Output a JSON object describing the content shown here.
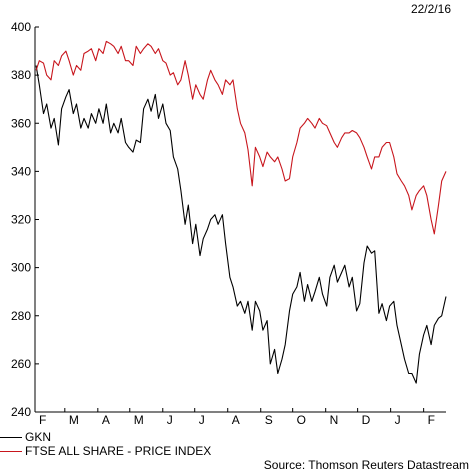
{
  "date_stamp": "22/2/16",
  "source": "Source: Thomson Reuters Datastream",
  "colors": {
    "gkn": "#000000",
    "ftse": "#c8161d"
  },
  "chart_data": {
    "type": "line",
    "title": "",
    "xlabel": "",
    "ylabel": "",
    "ylim": [
      240,
      400
    ],
    "yticks": [
      240,
      260,
      280,
      300,
      320,
      340,
      360,
      380,
      400
    ],
    "xlim": [
      "2015-02-01",
      "2016-02-22"
    ],
    "xticks": [
      {
        "label": "F",
        "date": "2015-02-01"
      },
      {
        "label": "M",
        "date": "2015-03-01"
      },
      {
        "label": "A",
        "date": "2015-04-01"
      },
      {
        "label": "M",
        "date": "2015-05-01"
      },
      {
        "label": "J",
        "date": "2015-06-01"
      },
      {
        "label": "J",
        "date": "2015-07-01"
      },
      {
        "label": "A",
        "date": "2015-08-01"
      },
      {
        "label": "S",
        "date": "2015-09-01"
      },
      {
        "label": "O",
        "date": "2015-10-01"
      },
      {
        "label": "N",
        "date": "2015-11-01"
      },
      {
        "label": "D",
        "date": "2015-12-01"
      },
      {
        "label": "J",
        "date": "2016-01-01"
      },
      {
        "label": "F",
        "date": "2016-02-01"
      }
    ],
    "legend_position": "bottom-left",
    "grid": false,
    "series": [
      {
        "name": "GKN",
        "color": "#000000",
        "points": [
          [
            "2015-02-02",
            384
          ],
          [
            "2015-02-05",
            376
          ],
          [
            "2015-02-09",
            364
          ],
          [
            "2015-02-12",
            368
          ],
          [
            "2015-02-16",
            358
          ],
          [
            "2015-02-19",
            362
          ],
          [
            "2015-02-23",
            351
          ],
          [
            "2015-02-26",
            366
          ],
          [
            "2015-03-02",
            371
          ],
          [
            "2015-03-05",
            374
          ],
          [
            "2015-03-09",
            364
          ],
          [
            "2015-03-12",
            368
          ],
          [
            "2015-03-16",
            358
          ],
          [
            "2015-03-19",
            362
          ],
          [
            "2015-03-23",
            358
          ],
          [
            "2015-03-26",
            364
          ],
          [
            "2015-03-30",
            360
          ],
          [
            "2015-04-02",
            366
          ],
          [
            "2015-04-06",
            360
          ],
          [
            "2015-04-09",
            368
          ],
          [
            "2015-04-13",
            356
          ],
          [
            "2015-04-16",
            360
          ],
          [
            "2015-04-20",
            356
          ],
          [
            "2015-04-23",
            362
          ],
          [
            "2015-04-27",
            352
          ],
          [
            "2015-04-30",
            350
          ],
          [
            "2015-05-04",
            348
          ],
          [
            "2015-05-07",
            353
          ],
          [
            "2015-05-11",
            352
          ],
          [
            "2015-05-14",
            366
          ],
          [
            "2015-05-18",
            370
          ],
          [
            "2015-05-21",
            365
          ],
          [
            "2015-05-25",
            372
          ],
          [
            "2015-05-28",
            362
          ],
          [
            "2015-06-01",
            368
          ],
          [
            "2015-06-04",
            360
          ],
          [
            "2015-06-08",
            357
          ],
          [
            "2015-06-11",
            346
          ],
          [
            "2015-06-15",
            341
          ],
          [
            "2015-06-18",
            332
          ],
          [
            "2015-06-22",
            318
          ],
          [
            "2015-06-25",
            326
          ],
          [
            "2015-06-29",
            310
          ],
          [
            "2015-07-02",
            318
          ],
          [
            "2015-07-06",
            305
          ],
          [
            "2015-07-09",
            312
          ],
          [
            "2015-07-13",
            316
          ],
          [
            "2015-07-16",
            320
          ],
          [
            "2015-07-20",
            322
          ],
          [
            "2015-07-23",
            318
          ],
          [
            "2015-07-27",
            322
          ],
          [
            "2015-07-30",
            310
          ],
          [
            "2015-08-03",
            296
          ],
          [
            "2015-08-06",
            292
          ],
          [
            "2015-08-10",
            284
          ],
          [
            "2015-08-13",
            286
          ],
          [
            "2015-08-17",
            281
          ],
          [
            "2015-08-20",
            286
          ],
          [
            "2015-08-24",
            274
          ],
          [
            "2015-08-27",
            286
          ],
          [
            "2015-08-31",
            282
          ],
          [
            "2015-09-03",
            274
          ],
          [
            "2015-09-07",
            278
          ],
          [
            "2015-09-10",
            260
          ],
          [
            "2015-09-14",
            266
          ],
          [
            "2015-09-17",
            256
          ],
          [
            "2015-09-21",
            262
          ],
          [
            "2015-09-24",
            268
          ],
          [
            "2015-09-28",
            282
          ],
          [
            "2015-10-01",
            289
          ],
          [
            "2015-10-05",
            292
          ],
          [
            "2015-10-08",
            298
          ],
          [
            "2015-10-12",
            286
          ],
          [
            "2015-10-15",
            293
          ],
          [
            "2015-10-19",
            286
          ],
          [
            "2015-10-22",
            290
          ],
          [
            "2015-10-26",
            296
          ],
          [
            "2015-10-29",
            289
          ],
          [
            "2015-11-02",
            284
          ],
          [
            "2015-11-05",
            296
          ],
          [
            "2015-11-09",
            301
          ],
          [
            "2015-11-12",
            294
          ],
          [
            "2015-11-16",
            298
          ],
          [
            "2015-11-19",
            301
          ],
          [
            "2015-11-23",
            292
          ],
          [
            "2015-11-26",
            296
          ],
          [
            "2015-11-30",
            282
          ],
          [
            "2015-12-03",
            285
          ],
          [
            "2015-12-07",
            302
          ],
          [
            "2015-12-10",
            309
          ],
          [
            "2015-12-14",
            306
          ],
          [
            "2015-12-17",
            307
          ],
          [
            "2015-12-21",
            281
          ],
          [
            "2015-12-24",
            285
          ],
          [
            "2015-12-28",
            278
          ],
          [
            "2015-12-31",
            284
          ],
          [
            "2016-01-04",
            286
          ],
          [
            "2016-01-07",
            276
          ],
          [
            "2016-01-11",
            268
          ],
          [
            "2016-01-14",
            262
          ],
          [
            "2016-01-18",
            256
          ],
          [
            "2016-01-21",
            256
          ],
          [
            "2016-01-25",
            252
          ],
          [
            "2016-01-28",
            264
          ],
          [
            "2016-02-01",
            272
          ],
          [
            "2016-02-04",
            276
          ],
          [
            "2016-02-08",
            268
          ],
          [
            "2016-02-11",
            276
          ],
          [
            "2016-02-15",
            279
          ],
          [
            "2016-02-18",
            280
          ],
          [
            "2016-02-22",
            288
          ]
        ]
      },
      {
        "name": "FTSE ALL SHARE - PRICE INDEX",
        "color": "#c8161d",
        "points": [
          [
            "2015-02-02",
            382
          ],
          [
            "2015-02-05",
            386
          ],
          [
            "2015-02-09",
            385
          ],
          [
            "2015-02-12",
            380
          ],
          [
            "2015-02-16",
            378
          ],
          [
            "2015-02-19",
            386
          ],
          [
            "2015-02-23",
            384
          ],
          [
            "2015-02-26",
            388
          ],
          [
            "2015-03-02",
            390
          ],
          [
            "2015-03-05",
            386
          ],
          [
            "2015-03-09",
            380
          ],
          [
            "2015-03-12",
            384
          ],
          [
            "2015-03-16",
            382
          ],
          [
            "2015-03-19",
            389
          ],
          [
            "2015-03-23",
            390
          ],
          [
            "2015-03-26",
            391
          ],
          [
            "2015-03-30",
            386
          ],
          [
            "2015-04-02",
            391
          ],
          [
            "2015-04-06",
            389
          ],
          [
            "2015-04-09",
            394
          ],
          [
            "2015-04-13",
            393
          ],
          [
            "2015-04-16",
            392
          ],
          [
            "2015-04-20",
            389
          ],
          [
            "2015-04-23",
            392
          ],
          [
            "2015-04-27",
            386
          ],
          [
            "2015-04-30",
            386
          ],
          [
            "2015-05-04",
            384
          ],
          [
            "2015-05-07",
            392
          ],
          [
            "2015-05-11",
            389
          ],
          [
            "2015-05-14",
            391
          ],
          [
            "2015-05-18",
            393
          ],
          [
            "2015-05-21",
            392
          ],
          [
            "2015-05-25",
            389
          ],
          [
            "2015-05-28",
            391
          ],
          [
            "2015-06-01",
            386
          ],
          [
            "2015-06-04",
            385
          ],
          [
            "2015-06-08",
            380
          ],
          [
            "2015-06-11",
            381
          ],
          [
            "2015-06-15",
            376
          ],
          [
            "2015-06-18",
            378
          ],
          [
            "2015-06-22",
            386
          ],
          [
            "2015-06-25",
            380
          ],
          [
            "2015-06-29",
            370
          ],
          [
            "2015-07-02",
            376
          ],
          [
            "2015-07-06",
            372
          ],
          [
            "2015-07-09",
            370
          ],
          [
            "2015-07-13",
            378
          ],
          [
            "2015-07-16",
            382
          ],
          [
            "2015-07-20",
            378
          ],
          [
            "2015-07-23",
            376
          ],
          [
            "2015-07-27",
            372
          ],
          [
            "2015-07-30",
            378
          ],
          [
            "2015-08-03",
            376
          ],
          [
            "2015-08-06",
            378
          ],
          [
            "2015-08-10",
            366
          ],
          [
            "2015-08-13",
            360
          ],
          [
            "2015-08-17",
            356
          ],
          [
            "2015-08-20",
            349
          ],
          [
            "2015-08-24",
            334
          ],
          [
            "2015-08-27",
            350
          ],
          [
            "2015-08-31",
            346
          ],
          [
            "2015-09-03",
            342
          ],
          [
            "2015-09-07",
            348
          ],
          [
            "2015-09-10",
            346
          ],
          [
            "2015-09-14",
            344
          ],
          [
            "2015-09-17",
            346
          ],
          [
            "2015-09-21",
            341
          ],
          [
            "2015-09-24",
            336
          ],
          [
            "2015-09-28",
            337
          ],
          [
            "2015-10-01",
            346
          ],
          [
            "2015-10-05",
            352
          ],
          [
            "2015-10-08",
            358
          ],
          [
            "2015-10-12",
            360
          ],
          [
            "2015-10-15",
            362
          ],
          [
            "2015-10-19",
            360
          ],
          [
            "2015-10-22",
            358
          ],
          [
            "2015-10-26",
            362
          ],
          [
            "2015-10-29",
            360
          ],
          [
            "2015-11-02",
            359
          ],
          [
            "2015-11-05",
            356
          ],
          [
            "2015-11-09",
            352
          ],
          [
            "2015-11-12",
            350
          ],
          [
            "2015-11-16",
            354
          ],
          [
            "2015-11-19",
            356
          ],
          [
            "2015-11-23",
            356
          ],
          [
            "2015-11-26",
            357
          ],
          [
            "2015-11-30",
            356
          ],
          [
            "2015-12-03",
            354
          ],
          [
            "2015-12-07",
            350
          ],
          [
            "2015-12-10",
            346
          ],
          [
            "2015-12-14",
            341
          ],
          [
            "2015-12-17",
            346
          ],
          [
            "2015-12-21",
            346
          ],
          [
            "2015-12-24",
            350
          ],
          [
            "2015-12-28",
            352
          ],
          [
            "2015-12-31",
            352
          ],
          [
            "2016-01-04",
            346
          ],
          [
            "2016-01-07",
            339
          ],
          [
            "2016-01-11",
            336
          ],
          [
            "2016-01-14",
            334
          ],
          [
            "2016-01-18",
            330
          ],
          [
            "2016-01-21",
            324
          ],
          [
            "2016-01-25",
            330
          ],
          [
            "2016-01-28",
            332
          ],
          [
            "2016-02-01",
            334
          ],
          [
            "2016-02-04",
            330
          ],
          [
            "2016-02-08",
            320
          ],
          [
            "2016-02-11",
            314
          ],
          [
            "2016-02-15",
            326
          ],
          [
            "2016-02-18",
            336
          ],
          [
            "2016-02-22",
            340
          ]
        ]
      }
    ]
  }
}
